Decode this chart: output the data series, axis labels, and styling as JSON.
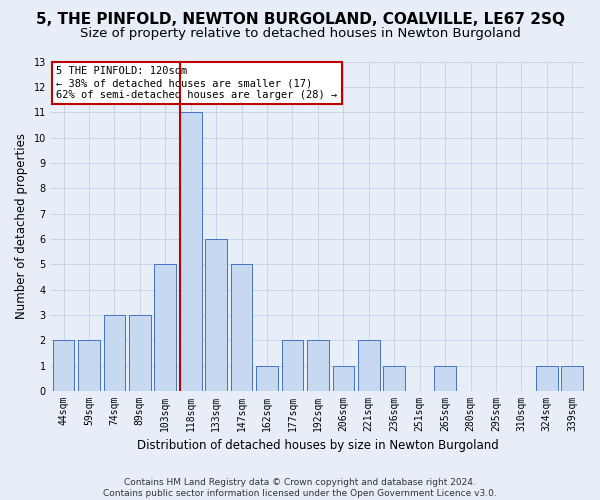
{
  "title": "5, THE PINFOLD, NEWTON BURGOLAND, COALVILLE, LE67 2SQ",
  "subtitle": "Size of property relative to detached houses in Newton Burgoland",
  "xlabel": "Distribution of detached houses by size in Newton Burgoland",
  "ylabel": "Number of detached properties",
  "footer_line1": "Contains HM Land Registry data © Crown copyright and database right 2024.",
  "footer_line2": "Contains public sector information licensed under the Open Government Licence v3.0.",
  "categories": [
    "44sqm",
    "59sqm",
    "74sqm",
    "89sqm",
    "103sqm",
    "118sqm",
    "133sqm",
    "147sqm",
    "162sqm",
    "177sqm",
    "192sqm",
    "206sqm",
    "221sqm",
    "236sqm",
    "251sqm",
    "265sqm",
    "280sqm",
    "295sqm",
    "310sqm",
    "324sqm",
    "339sqm"
  ],
  "values": [
    2,
    2,
    3,
    3,
    5,
    11,
    6,
    5,
    1,
    2,
    2,
    1,
    2,
    1,
    0,
    1,
    0,
    0,
    0,
    1,
    1
  ],
  "bar_color": "#c6d9f0",
  "bar_edge_color": "#4472c4",
  "highlight_bin_index": 5,
  "highlight_line_color": "#c00000",
  "annotation_line1": "5 THE PINFOLD: 120sqm",
  "annotation_line2": "← 38% of detached houses are smaller (17)",
  "annotation_line3": "62% of semi-detached houses are larger (28) →",
  "annotation_box_facecolor": "#ffffff",
  "annotation_box_edgecolor": "#c00000",
  "ylim_min": 0,
  "ylim_max": 13,
  "yticks": [
    0,
    1,
    2,
    3,
    4,
    5,
    6,
    7,
    8,
    9,
    10,
    11,
    12,
    13
  ],
  "grid_color": "#c8d4e8",
  "plot_bg_color": "#e8eef8",
  "fig_bg_color": "#e8eef8",
  "title_fontsize": 11,
  "subtitle_fontsize": 9.5,
  "axis_label_fontsize": 8.5,
  "tick_fontsize": 7,
  "annot_fontsize": 7.5,
  "footer_fontsize": 6.5
}
